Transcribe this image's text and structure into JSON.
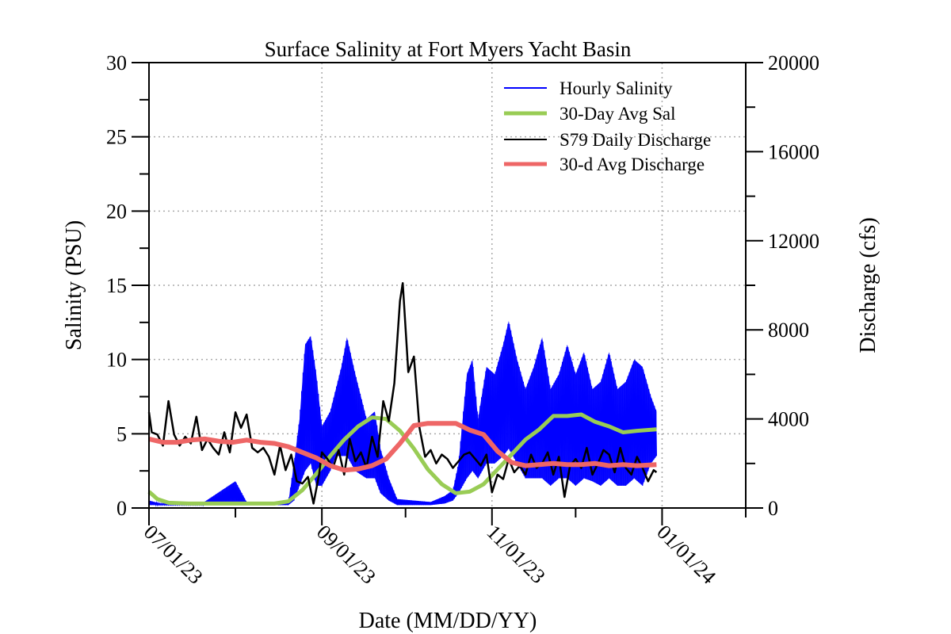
{
  "chart_data": {
    "type": "line",
    "title": "Surface Salinity at Fort Myers Yacht Basin",
    "xlabel": "Date (MM/DD/YY)",
    "ylabel_left": "Salinity (PSU)",
    "ylabel_right": "Discharge (cfs)",
    "x_range": [
      "07/01/23",
      "01/31/24"
    ],
    "x_ticks": [
      "07/01/23",
      "09/01/23",
      "11/01/23",
      "01/01/24"
    ],
    "ylim_left": [
      0,
      30
    ],
    "ylim_right": [
      0,
      20000
    ],
    "yticks_left": [
      "0",
      "5",
      "10",
      "15",
      "20",
      "25",
      "30"
    ],
    "yticks_right": [
      "0",
      "4000",
      "8000",
      "12000",
      "16000",
      "20000"
    ],
    "grid": true,
    "legend_position": "top-right",
    "colors": {
      "hourly_salinity": "#0000ff",
      "avg_salinity": "#99cc55",
      "daily_discharge": "#000000",
      "avg_discharge": "#ee6666"
    },
    "series": [
      {
        "name": "Hourly Salinity",
        "axis": "left",
        "kind": "envelope",
        "points": [
          [
            "07/01/23",
            0.2,
            0.5
          ],
          [
            "07/05/23",
            0.2,
            0.3
          ],
          [
            "07/20/23",
            0.2,
            0.3
          ],
          [
            "08/01/23",
            0.2,
            1.8
          ],
          [
            "08/05/23",
            0.2,
            0.4
          ],
          [
            "08/20/23",
            0.2,
            0.4
          ],
          [
            "08/22/23",
            0.5,
            3.0
          ],
          [
            "08/24/23",
            1.5,
            6.0
          ],
          [
            "08/26/23",
            2.5,
            11.0
          ],
          [
            "08/28/23",
            3.0,
            11.6
          ],
          [
            "08/30/23",
            1.5,
            9.0
          ],
          [
            "09/01/23",
            1.5,
            5.5
          ],
          [
            "09/04/23",
            2.5,
            6.5
          ],
          [
            "09/06/23",
            3.5,
            8.0
          ],
          [
            "09/08/23",
            3.5,
            9.5
          ],
          [
            "09/10/23",
            3.5,
            11.5
          ],
          [
            "09/13/23",
            2.5,
            9.0
          ],
          [
            "09/17/23",
            2.0,
            6.0
          ],
          [
            "09/20/23",
            2.0,
            6.5
          ],
          [
            "09/22/23",
            1.0,
            4.0
          ],
          [
            "09/25/23",
            0.5,
            2.0
          ],
          [
            "09/28/23",
            0.2,
            0.6
          ],
          [
            "10/10/23",
            0.2,
            0.4
          ],
          [
            "10/15/23",
            0.3,
            0.8
          ],
          [
            "10/18/23",
            0.5,
            1.2
          ],
          [
            "10/20/23",
            1.0,
            3.0
          ],
          [
            "10/23/23",
            2.0,
            9.0
          ],
          [
            "10/25/23",
            2.5,
            10.0
          ],
          [
            "10/27/23",
            2.0,
            6.0
          ],
          [
            "10/30/23",
            3.0,
            9.5
          ],
          [
            "11/02/23",
            3.0,
            9.0
          ],
          [
            "11/05/23",
            3.5,
            11.0
          ],
          [
            "11/07/23",
            4.0,
            12.6
          ],
          [
            "11/10/23",
            3.0,
            10.0
          ],
          [
            "11/13/23",
            2.0,
            8.0
          ],
          [
            "11/16/23",
            2.0,
            9.5
          ],
          [
            "11/19/23",
            2.0,
            11.5
          ],
          [
            "11/22/23",
            1.5,
            8.0
          ],
          [
            "11/25/23",
            2.0,
            9.0
          ],
          [
            "11/28/23",
            2.0,
            11.0
          ],
          [
            "12/01/23",
            1.5,
            9.0
          ],
          [
            "12/04/23",
            2.0,
            10.5
          ],
          [
            "12/07/23",
            1.8,
            8.0
          ],
          [
            "12/10/23",
            1.5,
            8.5
          ],
          [
            "12/13/23",
            2.0,
            10.5
          ],
          [
            "12/16/23",
            1.5,
            8.0
          ],
          [
            "12/19/23",
            1.5,
            8.5
          ],
          [
            "12/22/23",
            2.0,
            10.0
          ],
          [
            "12/25/23",
            1.5,
            9.5
          ],
          [
            "12/28/23",
            3.0,
            7.5
          ],
          [
            "12/30/23",
            3.5,
            6.5
          ]
        ]
      },
      {
        "name": "30-Day Avg Sal",
        "axis": "left",
        "points": [
          [
            "07/01/23",
            1.1
          ],
          [
            "07/04/23",
            0.6
          ],
          [
            "07/08/23",
            0.35
          ],
          [
            "07/15/23",
            0.3
          ],
          [
            "08/01/23",
            0.3
          ],
          [
            "08/15/23",
            0.3
          ],
          [
            "08/20/23",
            0.45
          ],
          [
            "08/25/23",
            1.2
          ],
          [
            "08/30/23",
            2.3
          ],
          [
            "09/04/23",
            3.5
          ],
          [
            "09/09/23",
            4.6
          ],
          [
            "09/14/23",
            5.5
          ],
          [
            "09/19/23",
            6.1
          ],
          [
            "09/24/23",
            6.0
          ],
          [
            "09/29/23",
            5.2
          ],
          [
            "10/04/23",
            4.0
          ],
          [
            "10/09/23",
            2.6
          ],
          [
            "10/14/23",
            1.6
          ],
          [
            "10/19/23",
            1.0
          ],
          [
            "10/24/23",
            1.1
          ],
          [
            "10/29/23",
            1.6
          ],
          [
            "11/03/23",
            2.6
          ],
          [
            "11/08/23",
            3.6
          ],
          [
            "11/13/23",
            4.6
          ],
          [
            "11/18/23",
            5.3
          ],
          [
            "11/23/23",
            6.2
          ],
          [
            "11/28/23",
            6.2
          ],
          [
            "12/03/23",
            6.3
          ],
          [
            "12/08/23",
            5.8
          ],
          [
            "12/13/23",
            5.5
          ],
          [
            "12/18/23",
            5.1
          ],
          [
            "12/23/23",
            5.2
          ],
          [
            "12/30/23",
            5.3
          ]
        ]
      },
      {
        "name": "S79 Daily Discharge",
        "axis": "right",
        "points": [
          [
            "07/01/23",
            4300
          ],
          [
            "07/02/23",
            3400
          ],
          [
            "07/04/23",
            3300
          ],
          [
            "07/06/23",
            2800
          ],
          [
            "07/08/23",
            4800
          ],
          [
            "07/10/23",
            3300
          ],
          [
            "07/12/23",
            2800
          ],
          [
            "07/14/23",
            3200
          ],
          [
            "07/16/23",
            2900
          ],
          [
            "07/18/23",
            4100
          ],
          [
            "07/20/23",
            2600
          ],
          [
            "07/22/23",
            3100
          ],
          [
            "07/24/23",
            2700
          ],
          [
            "07/26/23",
            2400
          ],
          [
            "07/28/23",
            3400
          ],
          [
            "07/30/23",
            2500
          ],
          [
            "08/01/23",
            4300
          ],
          [
            "08/03/23",
            3600
          ],
          [
            "08/05/23",
            4200
          ],
          [
            "08/07/23",
            2700
          ],
          [
            "08/09/23",
            2500
          ],
          [
            "08/11/23",
            2700
          ],
          [
            "08/13/23",
            2300
          ],
          [
            "08/15/23",
            1500
          ],
          [
            "08/17/23",
            2800
          ],
          [
            "08/19/23",
            1700
          ],
          [
            "08/21/23",
            2400
          ],
          [
            "08/23/23",
            1200
          ],
          [
            "08/25/23",
            1100
          ],
          [
            "08/27/23",
            1400
          ],
          [
            "08/29/23",
            200
          ],
          [
            "08/31/23",
            1500
          ],
          [
            "09/01/23",
            2500
          ],
          [
            "09/03/23",
            2200
          ],
          [
            "09/05/23",
            1800
          ],
          [
            "09/07/23",
            2600
          ],
          [
            "09/09/23",
            1500
          ],
          [
            "09/11/23",
            3100
          ],
          [
            "09/13/23",
            2100
          ],
          [
            "09/15/23",
            2500
          ],
          [
            "09/17/23",
            1800
          ],
          [
            "09/19/23",
            3200
          ],
          [
            "09/21/23",
            2300
          ],
          [
            "09/23/23",
            4800
          ],
          [
            "09/25/23",
            3900
          ],
          [
            "09/27/23",
            5600
          ],
          [
            "09/29/23",
            9300
          ],
          [
            "09/30/23",
            10100
          ],
          [
            "10/02/23",
            6100
          ],
          [
            "10/04/23",
            6800
          ],
          [
            "10/06/23",
            3600
          ],
          [
            "10/08/23",
            2300
          ],
          [
            "10/10/23",
            2600
          ],
          [
            "10/12/23",
            2000
          ],
          [
            "10/14/23",
            2400
          ],
          [
            "10/16/23",
            2200
          ],
          [
            "10/18/23",
            1800
          ],
          [
            "10/20/23",
            2100
          ],
          [
            "10/22/23",
            2400
          ],
          [
            "10/24/23",
            2500
          ],
          [
            "10/26/23",
            2200
          ],
          [
            "10/28/23",
            1900
          ],
          [
            "10/30/23",
            2400
          ],
          [
            "11/01/23",
            700
          ],
          [
            "11/03/23",
            1500
          ],
          [
            "11/05/23",
            1300
          ],
          [
            "11/07/23",
            2200
          ],
          [
            "11/09/23",
            1600
          ],
          [
            "11/11/23",
            1900
          ],
          [
            "11/13/23",
            1500
          ],
          [
            "11/15/23",
            2400
          ],
          [
            "11/17/23",
            1800
          ],
          [
            "11/19/23",
            2000
          ],
          [
            "11/21/23",
            2500
          ],
          [
            "11/23/23",
            1500
          ],
          [
            "11/25/23",
            2300
          ],
          [
            "11/27/23",
            500
          ],
          [
            "11/29/23",
            1900
          ],
          [
            "12/01/23",
            2200
          ],
          [
            "12/03/23",
            1800
          ],
          [
            "12/05/23",
            2700
          ],
          [
            "12/07/23",
            1500
          ],
          [
            "12/09/23",
            2000
          ],
          [
            "12/11/23",
            2600
          ],
          [
            "12/13/23",
            2400
          ],
          [
            "12/15/23",
            1600
          ],
          [
            "12/17/23",
            2700
          ],
          [
            "12/19/23",
            1800
          ],
          [
            "12/21/23",
            1500
          ],
          [
            "12/23/23",
            2300
          ],
          [
            "12/25/23",
            1800
          ],
          [
            "12/27/23",
            1200
          ],
          [
            "12/29/23",
            1700
          ],
          [
            "12/30/23",
            1600
          ]
        ]
      },
      {
        "name": "30-d Avg Discharge",
        "axis": "right",
        "points": [
          [
            "07/01/23",
            3100
          ],
          [
            "07/06/23",
            2950
          ],
          [
            "07/11/23",
            2950
          ],
          [
            "07/16/23",
            3050
          ],
          [
            "07/21/23",
            3100
          ],
          [
            "07/26/23",
            3000
          ],
          [
            "07/31/23",
            2950
          ],
          [
            "08/05/23",
            3050
          ],
          [
            "08/10/23",
            2950
          ],
          [
            "08/15/23",
            2900
          ],
          [
            "08/20/23",
            2750
          ],
          [
            "08/25/23",
            2500
          ],
          [
            "08/30/23",
            2250
          ],
          [
            "09/04/23",
            1900
          ],
          [
            "09/09/23",
            1700
          ],
          [
            "09/14/23",
            1750
          ],
          [
            "09/19/23",
            1900
          ],
          [
            "09/24/23",
            2200
          ],
          [
            "09/29/23",
            2900
          ],
          [
            "10/04/23",
            3700
          ],
          [
            "10/09/23",
            3800
          ],
          [
            "10/14/23",
            3800
          ],
          [
            "10/19/23",
            3800
          ],
          [
            "10/24/23",
            3500
          ],
          [
            "10/29/23",
            3300
          ],
          [
            "11/03/23",
            2550
          ],
          [
            "11/08/23",
            2050
          ],
          [
            "11/13/23",
            1900
          ],
          [
            "11/18/23",
            1950
          ],
          [
            "11/23/23",
            2000
          ],
          [
            "11/28/23",
            1950
          ],
          [
            "12/03/23",
            1950
          ],
          [
            "12/08/23",
            2000
          ],
          [
            "12/13/23",
            1900
          ],
          [
            "12/18/23",
            1950
          ],
          [
            "12/23/23",
            1900
          ],
          [
            "12/30/23",
            1950
          ]
        ]
      }
    ]
  }
}
